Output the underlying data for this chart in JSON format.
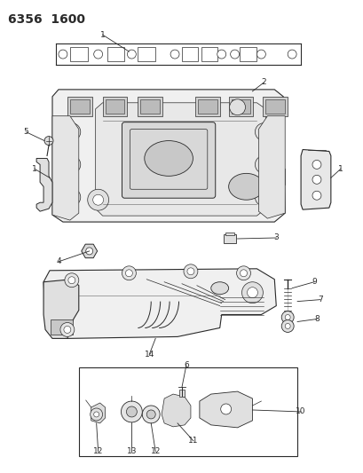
{
  "title": "6356  1600",
  "bg_color": "#ffffff",
  "line_color": "#2a2a2a",
  "fill_light": "#f5f5f5",
  "fill_mid": "#e8e8e8",
  "fill_dark": "#d0d0d0",
  "title_fontsize": 10,
  "label_fontsize": 6.5
}
